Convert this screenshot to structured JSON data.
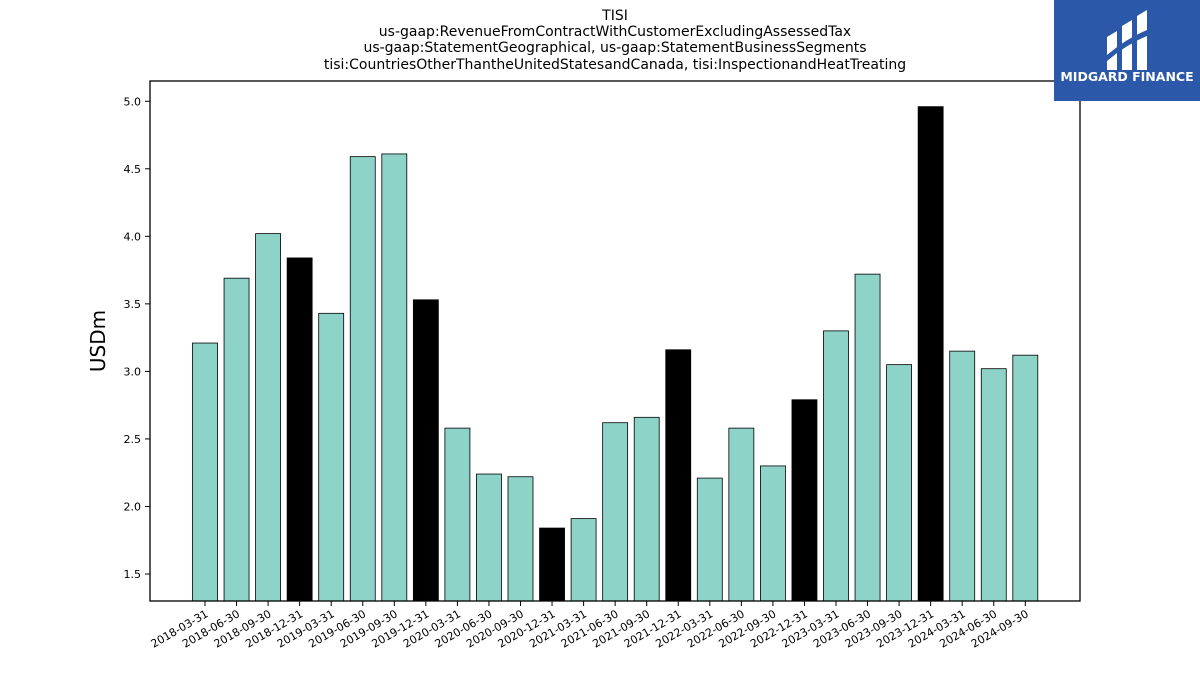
{
  "chart_data": {
    "type": "bar",
    "title_lines": [
      "TISI",
      "us-gaap:RevenueFromContractWithCustomerExcludingAssessedTax",
      "us-gaap:StatementGeographical, us-gaap:StatementBusinessSegments",
      "tisi:CountriesOtherThantheUnitedStatesandCanada, tisi:InspectionandHeatTreating"
    ],
    "ylabel": "USDm",
    "xlabel": "",
    "ylim": [
      1.3,
      5.15
    ],
    "yticks": [
      "1.5",
      "2.0",
      "2.5",
      "3.0",
      "3.5",
      "4.0",
      "4.5",
      "5.0"
    ],
    "grid": false,
    "colors": {
      "default": "#8dd3c7",
      "highlight": "#000000",
      "edge": "#000000"
    },
    "categories": [
      "2018-03-31",
      "2018-06-30",
      "2018-09-30",
      "2018-12-31",
      "2019-03-31",
      "2019-06-30",
      "2019-09-30",
      "2019-12-31",
      "2020-03-31",
      "2020-06-30",
      "2020-09-30",
      "2020-12-31",
      "2021-03-31",
      "2021-06-30",
      "2021-09-30",
      "2021-12-31",
      "2022-03-31",
      "2022-06-30",
      "2022-09-30",
      "2022-12-31",
      "2023-03-31",
      "2023-06-30",
      "2023-09-30",
      "2023-12-31",
      "2024-03-31",
      "2024-06-30",
      "2024-09-30"
    ],
    "values": [
      3.21,
      3.69,
      4.02,
      3.84,
      3.43,
      4.59,
      4.61,
      3.53,
      2.58,
      2.24,
      2.22,
      1.84,
      1.91,
      2.62,
      2.66,
      3.16,
      2.21,
      2.58,
      2.3,
      2.79,
      3.3,
      3.72,
      3.05,
      4.96,
      3.15,
      3.02,
      3.12
    ],
    "highlight": [
      false,
      false,
      false,
      true,
      false,
      false,
      false,
      true,
      false,
      false,
      false,
      true,
      false,
      false,
      false,
      true,
      false,
      false,
      false,
      true,
      false,
      false,
      false,
      true,
      false,
      false,
      false
    ]
  },
  "logo": {
    "text": "MIDGARD FINANCE",
    "background": "#2b58a8"
  }
}
